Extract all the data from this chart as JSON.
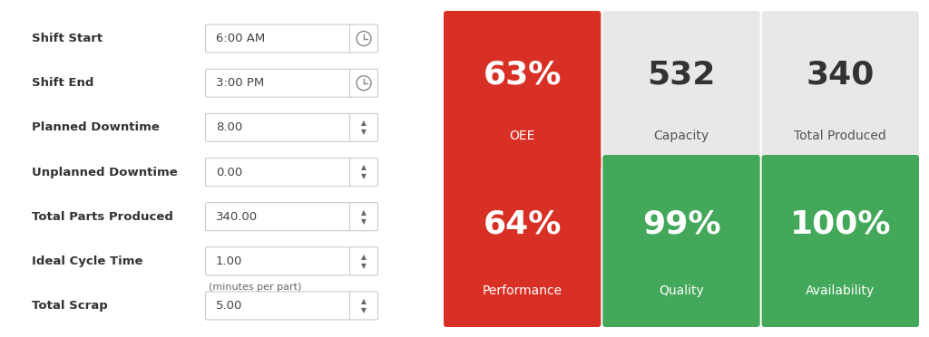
{
  "background_color": "#ffffff",
  "fig_w": 10.24,
  "fig_h": 3.72,
  "left_panel": {
    "fields": [
      {
        "label": "Shift Start",
        "value": "6:00 AM",
        "type": "time"
      },
      {
        "label": "Shift End",
        "value": "3:00 PM",
        "type": "time"
      },
      {
        "label": "Planned Downtime",
        "value": "8.00",
        "type": "number"
      },
      {
        "label": "Unplanned Downtime",
        "value": "0.00",
        "type": "number"
      },
      {
        "label": "Total Parts Produced",
        "value": "340.00",
        "type": "number"
      },
      {
        "label": "Ideal Cycle Time",
        "value": "1.00",
        "type": "number",
        "sub": "(minutes per part)"
      },
      {
        "label": "Total Scrap",
        "value": "5.00",
        "type": "number"
      }
    ],
    "label_color": "#333333",
    "value_color": "#444444",
    "box_border_color": "#cccccc",
    "label_fontsize": 9.5,
    "value_fontsize": 9.5,
    "sub_fontsize": 8
  },
  "right_panel": {
    "top_row": [
      {
        "value": "63%",
        "label": "OEE",
        "bg": "#d93025",
        "text_color": "#ffffff",
        "label_color": "#ffffff"
      },
      {
        "value": "532",
        "label": "Capacity",
        "bg": "#e8e8e8",
        "text_color": "#333333",
        "label_color": "#555555"
      },
      {
        "value": "340",
        "label": "Total Produced",
        "bg": "#e8e8e8",
        "text_color": "#333333",
        "label_color": "#555555"
      }
    ],
    "bottom_row": [
      {
        "value": "64%",
        "label": "Performance",
        "bg": "#d93025",
        "text_color": "#ffffff",
        "label_color": "#ffffff"
      },
      {
        "value": "99%",
        "label": "Quality",
        "bg": "#43a85a",
        "text_color": "#ffffff",
        "label_color": "#ffffff"
      },
      {
        "value": "100%",
        "label": "Availability",
        "bg": "#43a85a",
        "text_color": "#ffffff",
        "label_color": "#ffffff"
      }
    ],
    "value_fontsize": 26,
    "label_fontsize": 10
  }
}
